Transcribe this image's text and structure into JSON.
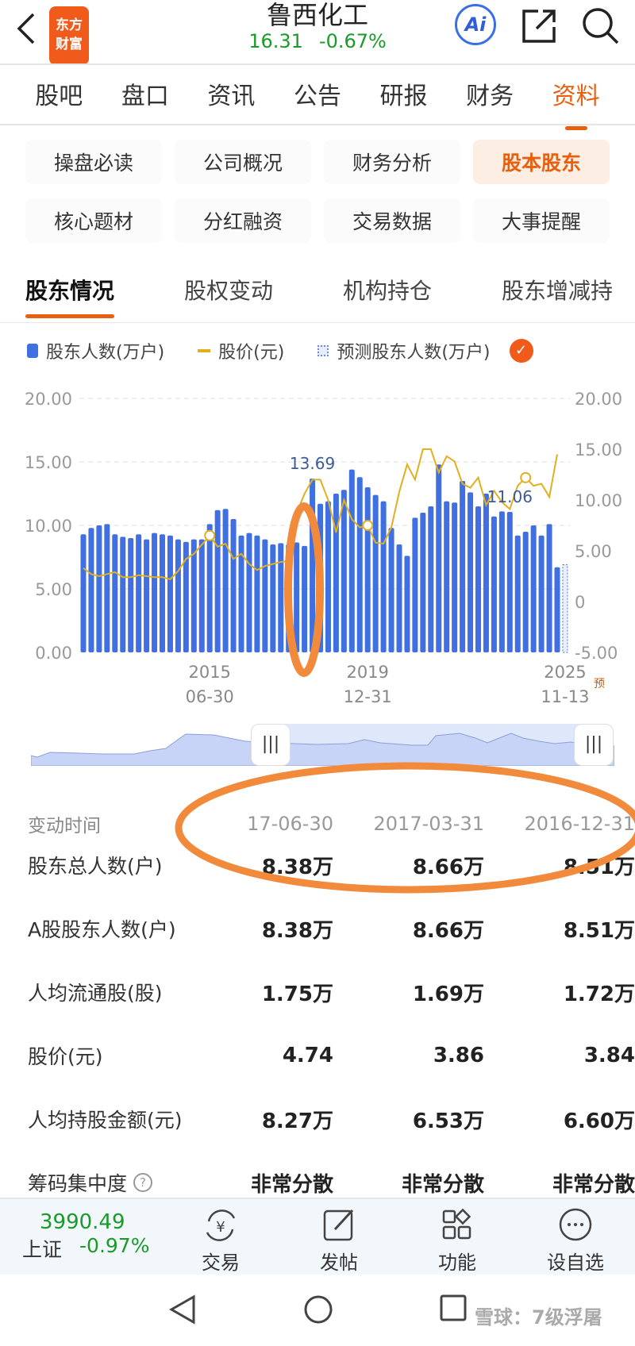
{
  "header": {
    "title": "鲁西化工",
    "price": "16.31",
    "change": "-0.67%",
    "logo_text": "东方财富",
    "ai_label": "Ai"
  },
  "tabs": [
    {
      "label": "股吧"
    },
    {
      "label": "盘口"
    },
    {
      "label": "资讯"
    },
    {
      "label": "公告"
    },
    {
      "label": "研报"
    },
    {
      "label": "财务"
    },
    {
      "label": "资料",
      "active": true
    }
  ],
  "chips": [
    {
      "label": "操盘必读"
    },
    {
      "label": "公司概况"
    },
    {
      "label": "财务分析"
    },
    {
      "label": "股本股东",
      "active": true
    },
    {
      "label": "核心题材"
    },
    {
      "label": "分红融资"
    },
    {
      "label": "交易数据"
    },
    {
      "label": "大事提醒"
    }
  ],
  "subtabs": [
    {
      "label": "股东情况",
      "active": true
    },
    {
      "label": "股权变动"
    },
    {
      "label": "机构持仓"
    },
    {
      "label": "股东增减持"
    }
  ],
  "legend": {
    "bars": "股东人数(万户)",
    "line": "股价(元)",
    "forecast": "预测股东人数(万户)"
  },
  "colors": {
    "accent": "#e8600f",
    "bar": "#3f6fe0",
    "line": "#e0b020",
    "up_down_green": "#1a9a2a",
    "annotation": "#f28a3c"
  },
  "chart_data": {
    "type": "bar+line",
    "left_axis": {
      "ticks": [
        "20.00",
        "15.00",
        "10.00",
        "5.00",
        "0.00"
      ],
      "range": [
        0,
        20
      ]
    },
    "right_axis": {
      "ticks": [
        "20.00",
        "15.00",
        "10.00",
        "5.00",
        "0",
        "-5.00"
      ],
      "range": [
        -5,
        20
      ]
    },
    "x_ticks": [
      {
        "index": 16,
        "year": "2015",
        "date": "06-30"
      },
      {
        "index": 36,
        "year": "2019",
        "date": "12-31"
      },
      {
        "index": 61,
        "year": "2025",
        "date": "11-13"
      }
    ],
    "forecast_tag": "预",
    "series": [
      {
        "name": "股东人数(万户)",
        "type": "bar",
        "values": [
          9.3,
          9.8,
          10.0,
          10.1,
          9.3,
          9.1,
          9.0,
          9.3,
          8.9,
          9.4,
          9.3,
          9.2,
          8.9,
          8.7,
          8.9,
          8.9,
          10.1,
          11.2,
          11.3,
          10.5,
          9.2,
          9.4,
          9.2,
          8.9,
          8.5,
          8.6,
          8.51,
          8.66,
          8.38,
          13.69,
          11.7,
          11.9,
          12.5,
          12.8,
          14.4,
          13.8,
          13.0,
          12.4,
          11.9,
          9.8,
          8.5,
          7.6,
          10.6,
          11.0,
          11.5,
          14.8,
          11.9,
          11.8,
          13.5,
          12.6,
          11.5,
          12.5,
          10.7,
          11.1,
          11.06,
          9.2,
          9.5,
          10.0,
          9.2,
          10.1,
          6.7
        ]
      },
      {
        "name": "股价(元)",
        "type": "line",
        "axis": "right",
        "values": [
          3.3,
          2.7,
          2.5,
          2.7,
          2.9,
          2.4,
          2.4,
          2.6,
          2.5,
          2.4,
          2.4,
          2.2,
          3.0,
          4.2,
          4.7,
          5.6,
          6.5,
          5.4,
          5.7,
          4.2,
          4.7,
          3.7,
          3.1,
          3.5,
          3.7,
          3.9,
          4.0,
          8.7,
          10.6,
          12.0,
          12.0,
          10.0,
          6.8,
          10.0,
          8.1,
          7.3,
          7.5,
          5.8,
          5.7,
          7.3,
          10.8,
          13.5,
          12.0,
          15.0,
          15.0,
          12.7,
          14.3,
          13.8,
          11.6,
          11.2,
          12.2,
          9.5,
          10.9,
          9.8,
          9.1,
          11.4,
          12.2,
          11.4,
          11.6,
          10.3,
          14.5
        ],
        "markers": [
          16,
          36,
          56
        ]
      },
      {
        "name": "预测股东人数(万户)",
        "type": "bar-dotted",
        "values": [
          6.9
        ]
      }
    ],
    "data_labels": [
      {
        "index": 29,
        "text": "13.69"
      },
      {
        "index": 54,
        "text": "11.06"
      }
    ],
    "grid": true,
    "legend_position": "top"
  },
  "table": {
    "header": {
      "label": "变动时间",
      "values": [
        "17-06-30",
        "2017-03-31",
        "2016-12-31"
      ]
    },
    "rows": [
      {
        "label": "股东总人数(户)",
        "values": [
          "8.38万",
          "8.66万",
          "8.51万"
        ]
      },
      {
        "label": "A股股东人数(户)",
        "values": [
          "8.38万",
          "8.66万",
          "8.51万"
        ]
      },
      {
        "label": "人均流通股(股)",
        "values": [
          "1.75万",
          "1.69万",
          "1.72万"
        ]
      },
      {
        "label": "股价(元)",
        "values": [
          "4.74",
          "3.86",
          "3.84"
        ]
      },
      {
        "label": "人均持股金额(元)",
        "values": [
          "8.27万",
          "6.53万",
          "6.60万"
        ]
      },
      {
        "label": "筹码集中度",
        "values": [
          "非常分散",
          "非常分散",
          "非常分散"
        ]
      }
    ]
  },
  "bottom_bar": {
    "index_value": "3990.49",
    "index_name": "上证",
    "index_change": "-0.97%",
    "items": [
      {
        "label": "交易"
      },
      {
        "label": "发帖"
      },
      {
        "label": "功能"
      },
      {
        "label": "设自选"
      }
    ]
  },
  "watermark": "雪球：7级浮屠"
}
